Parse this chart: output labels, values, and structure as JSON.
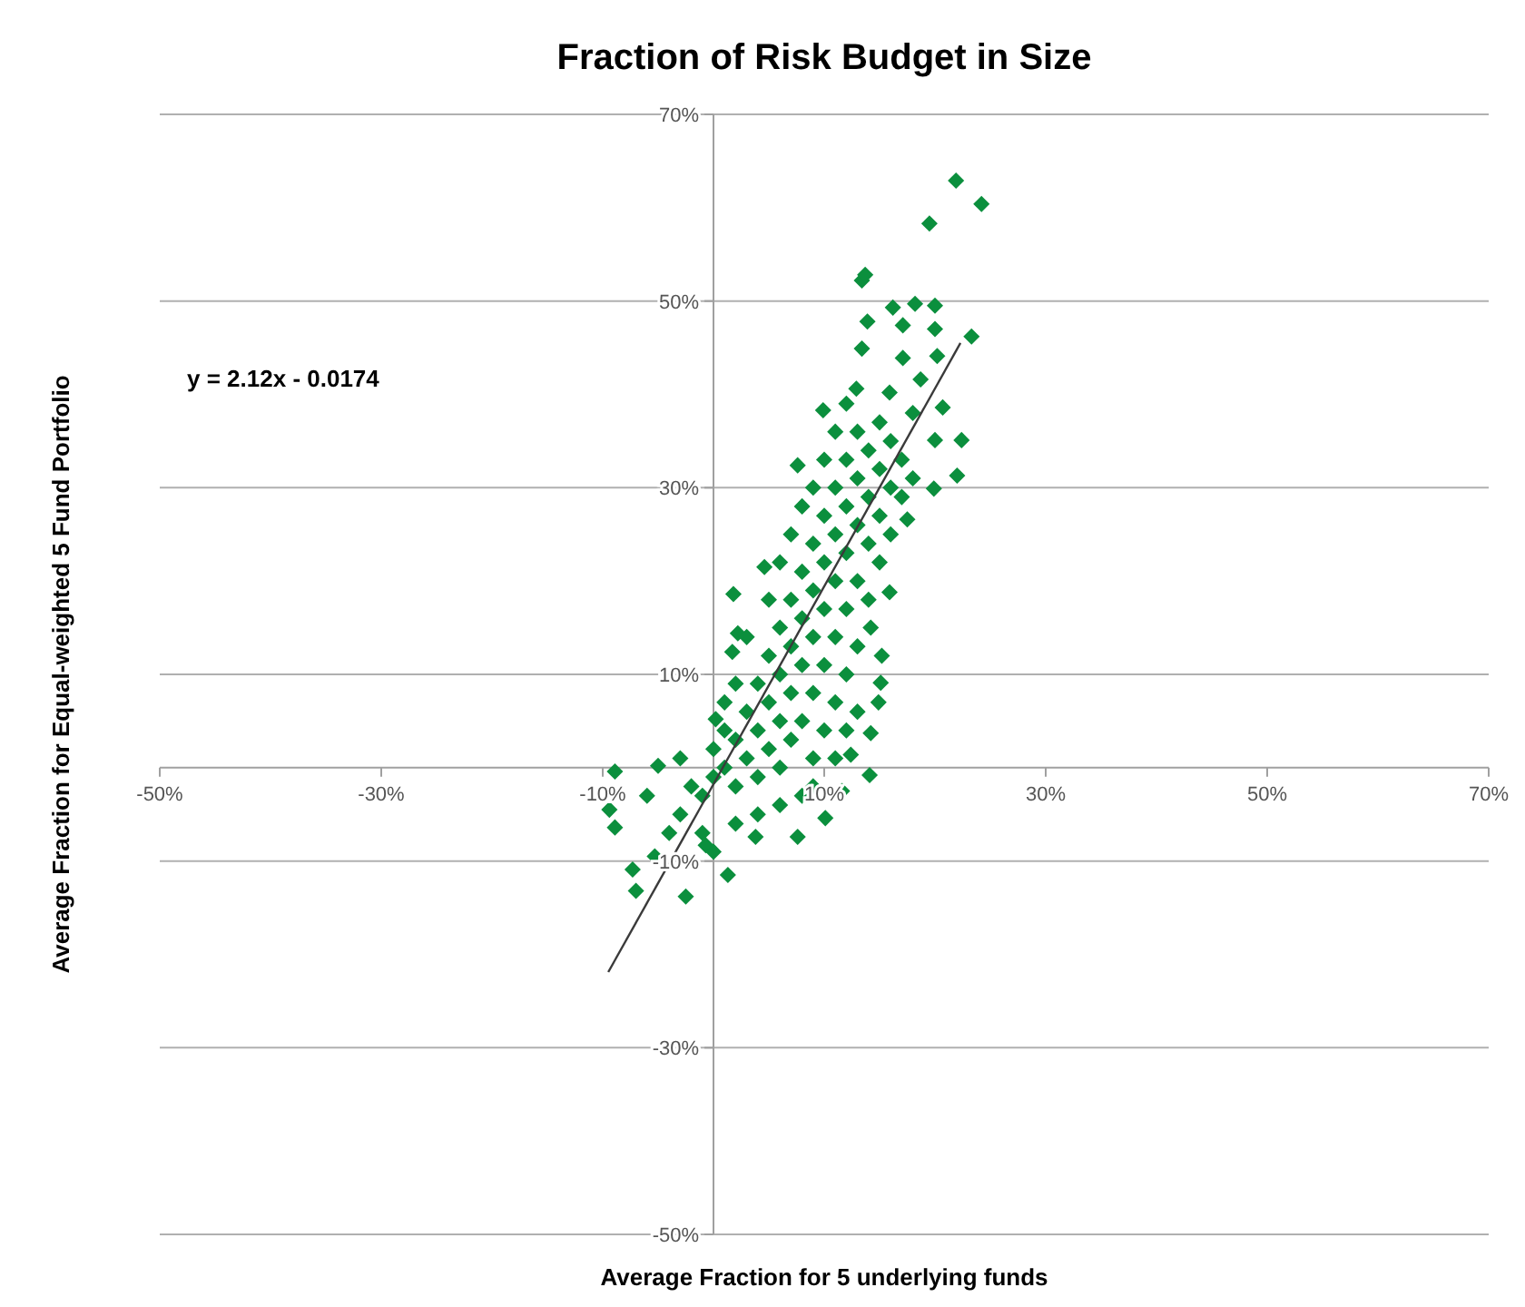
{
  "chart_data": {
    "type": "scatter",
    "title": "Fraction of Risk Budget in Size",
    "xlabel": "Average Fraction for 5 underlying funds",
    "ylabel": "Average Fraction for Equal-weighted  5 Fund Portfolio",
    "annotations": [
      "y = 2.12x - 0.0174"
    ],
    "xlim": [
      -50,
      70
    ],
    "ylim": [
      -50,
      70
    ],
    "xticks": [
      {
        "value": -50,
        "label": "-50%"
      },
      {
        "value": -30,
        "label": "-30%"
      },
      {
        "value": -10,
        "label": "-10%"
      },
      {
        "value": 10,
        "label": "10%"
      },
      {
        "value": 30,
        "label": "30%"
      },
      {
        "value": 50,
        "label": "50%"
      },
      {
        "value": 70,
        "label": "70%"
      }
    ],
    "yticks": [
      {
        "value": -50,
        "label": "-50%"
      },
      {
        "value": -30,
        "label": "-30%"
      },
      {
        "value": -10,
        "label": "-10%"
      },
      {
        "value": 10,
        "label": "10%"
      },
      {
        "value": 30,
        "label": "30%"
      },
      {
        "value": 50,
        "label": "50%"
      },
      {
        "value": 70,
        "label": "70%"
      }
    ],
    "grid": "y",
    "series": [
      {
        "color": "#0b8f3d",
        "marker": "diamond",
        "x": [
          21.9,
          24.2,
          19.5,
          13.4,
          13.7,
          16.2,
          18.2,
          20.0,
          13.9,
          17.1,
          20.0,
          23.3,
          13.4,
          17.1,
          20.2,
          20.7,
          20.0,
          22.4,
          22.0,
          19.9,
          7.6,
          12.9,
          9.9,
          15.9,
          18.7,
          4.6,
          1.8,
          2.2,
          1.7,
          0.2,
          -5.0,
          -8.9,
          -9.4,
          -8.9,
          -7.3,
          -7.0,
          -2.5,
          1.3,
          -5.3,
          17.5,
          15.9,
          14.2,
          15.2,
          15.1,
          14.9,
          14.2,
          12.4,
          14.1,
          11.6,
          10.1,
          7.6,
          3.8,
          -0.7,
          -3,
          -2,
          -1,
          0,
          0,
          1,
          1,
          2,
          2,
          3,
          3,
          4,
          4,
          4,
          5,
          5,
          5,
          6,
          6,
          6,
          6,
          7,
          7,
          7,
          7,
          8,
          8,
          8,
          8,
          8,
          9,
          9,
          9,
          9,
          9,
          10,
          10,
          10,
          10,
          10,
          11,
          11,
          11,
          11,
          11,
          12,
          12,
          12,
          12,
          12,
          13,
          13,
          13,
          13,
          13,
          14,
          14,
          14,
          14,
          15,
          15,
          15,
          15,
          16,
          16,
          16,
          17,
          17,
          18,
          18,
          3,
          2,
          1,
          5,
          6,
          7,
          8,
          9,
          10,
          11,
          12,
          -4,
          -6,
          -3,
          -1,
          0,
          2,
          4,
          6,
          9,
          11,
          12,
          13
        ],
        "values": [
          62.9,
          60.4,
          58.3,
          52.2,
          52.8,
          49.3,
          49.7,
          49.5,
          47.8,
          47.4,
          47.0,
          46.2,
          44.9,
          43.9,
          44.1,
          38.6,
          35.1,
          35.1,
          31.3,
          29.9,
          32.4,
          40.6,
          38.3,
          40.2,
          41.6,
          21.5,
          18.6,
          14.4,
          12.4,
          5.2,
          0.2,
          -0.4,
          -4.5,
          -6.4,
          -10.9,
          -13.2,
          -13.8,
          -11.5,
          -9.5,
          26.6,
          18.8,
          15.0,
          12.0,
          9.1,
          7.0,
          3.7,
          1.4,
          -0.8,
          -2.5,
          -5.4,
          -7.4,
          -7.4,
          -8.3,
          -5,
          -2,
          -3,
          -1,
          2,
          0,
          4,
          -2,
          3,
          1,
          6,
          -1,
          4,
          9,
          2,
          7,
          12,
          0,
          5,
          10,
          15,
          3,
          8,
          13,
          18,
          -3,
          5,
          11,
          16,
          21,
          1,
          8,
          14,
          19,
          24,
          4,
          11,
          17,
          22,
          27,
          7,
          14,
          20,
          25,
          30,
          10,
          17,
          23,
          28,
          33,
          13,
          20,
          26,
          31,
          36,
          18,
          24,
          29,
          34,
          22,
          27,
          32,
          37,
          25,
          30,
          35,
          29,
          33,
          31,
          38,
          14,
          9,
          7,
          18,
          22,
          25,
          28,
          30,
          33,
          36,
          39,
          -7,
          -3,
          1,
          -7,
          -9,
          -6,
          -5,
          -4,
          -2,
          1,
          4,
          6
        ]
      },
      {
        "type": "line",
        "color": "#3a3a3a",
        "marker": "none",
        "x": [
          -9.5,
          22.3
        ],
        "values": [
          -21.9,
          45.5
        ]
      }
    ]
  }
}
